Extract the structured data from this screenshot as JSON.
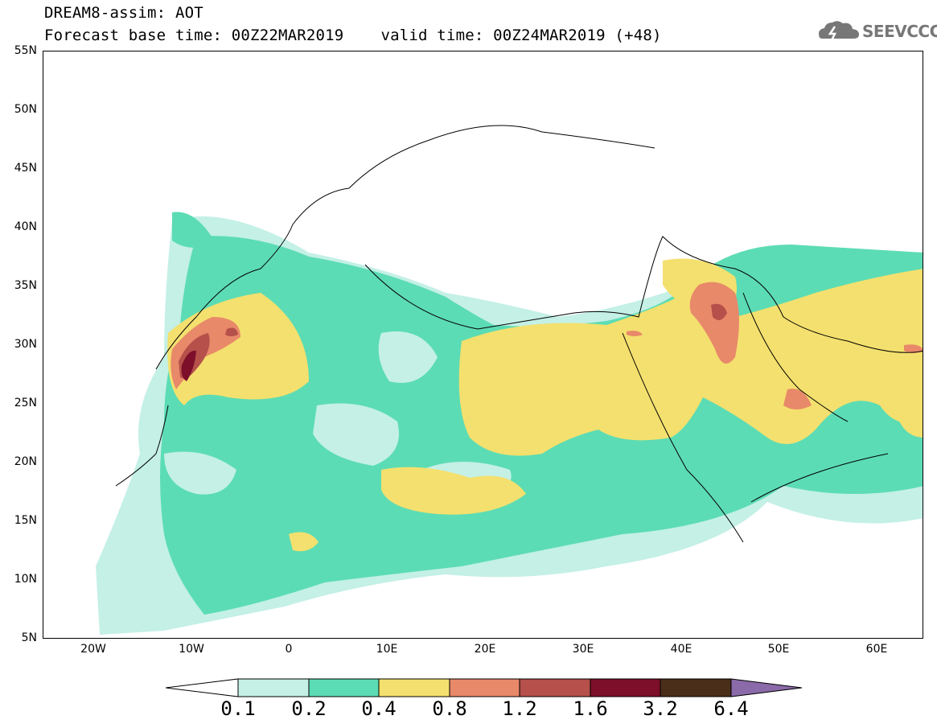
{
  "title": {
    "line1": "DREAM8-assim: AOT",
    "base": "Forecast base time: 00Z22MAR2019",
    "valid": "valid time: 00Z24MAR2019 (+48)"
  },
  "logo": {
    "text": "SEEVCCC",
    "icon": "cloud-icon",
    "color": "#777777"
  },
  "axes": {
    "lat_labels": [
      "55N",
      "50N",
      "45N",
      "40N",
      "35N",
      "30N",
      "25N",
      "20N",
      "15N",
      "10N",
      "5N"
    ],
    "lon_labels": [
      "20W",
      "10W",
      "0",
      "10E",
      "20E",
      "30E",
      "40E",
      "50E",
      "60E"
    ]
  },
  "legend": {
    "thresholds": [
      "0.1",
      "0.2",
      "0.4",
      "0.8",
      "1.2",
      "1.6",
      "3.2",
      "6.4"
    ],
    "colors": [
      "#c4f0e6",
      "#5cdcb4",
      "#f4e06e",
      "#e8896a",
      "#b5504a",
      "#7d0f2a",
      "#4a2e1a",
      "#8a6aa8"
    ]
  }
}
